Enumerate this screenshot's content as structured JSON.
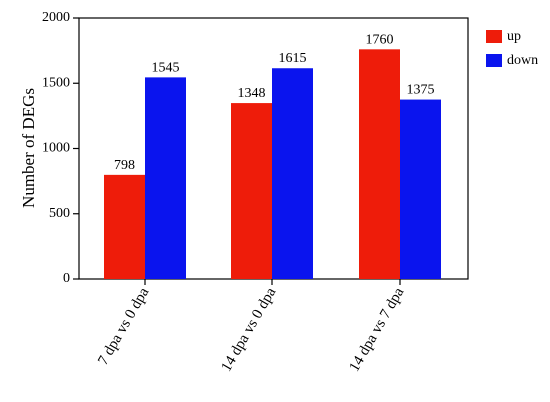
{
  "chart_data": {
    "type": "bar",
    "ylabel": "Number of DEGs",
    "ylim": [
      0,
      2000
    ],
    "yticks": [
      0,
      500,
      1000,
      1500,
      2000
    ],
    "categories": [
      "7 dpa vs 0 dpa",
      "14 dpa vs 0 dpa",
      "14 dpa vs 7 dpa"
    ],
    "series": [
      {
        "name": "up",
        "values": [
          798,
          1348,
          1760
        ],
        "color": "#ee1c0a"
      },
      {
        "name": "down",
        "values": [
          1545,
          1615,
          1375
        ],
        "color": "#0a14ee"
      }
    ],
    "legend_position": "right"
  }
}
